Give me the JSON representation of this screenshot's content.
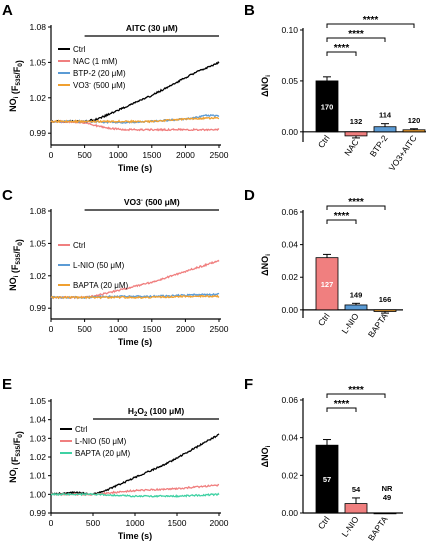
{
  "colors": {
    "ctrl": "#000000",
    "nac": "#f07f7f",
    "btp2": "#5b9bd5",
    "vo3": "#f0a030",
    "lnio": "#f07f7f",
    "bapta_orange": "#f0a030",
    "bapta_teal": "#3fd1a3"
  },
  "chart_data": [
    {
      "id": "A",
      "type": "line",
      "panel_label": "A",
      "annotation": "AITC (30 μM)",
      "annotation_range": [
        500,
        2500
      ],
      "xlabel": "Time (s)",
      "ylabel": "NOi (F535/F0)",
      "xlim": [
        0,
        2500
      ],
      "ylim": [
        0.98,
        1.08
      ],
      "xticks": [
        0,
        500,
        1000,
        1500,
        2000,
        2500
      ],
      "yticks": [
        "0.99",
        "1.02",
        "1.05",
        "1.08"
      ],
      "ytick_values": [
        0.99,
        1.02,
        1.05,
        1.08
      ],
      "legend": [
        "Ctrl",
        "NAC (1 mM)",
        "BTP-2 (20 μM)",
        "VO3- (500 μM)"
      ],
      "series": [
        {
          "name": "Ctrl",
          "color": "#000000",
          "x": [
            0,
            500,
            700,
            900,
            1100,
            1300,
            1500,
            1700,
            1900,
            2100,
            2300,
            2500
          ],
          "y": [
            1.0,
            1.0,
            1.002,
            1.007,
            1.012,
            1.017,
            1.022,
            1.028,
            1.034,
            1.04,
            1.045,
            1.05
          ]
        },
        {
          "name": "NAC (1 mM)",
          "color": "#f07f7f",
          "x": [
            0,
            500,
            700,
            900,
            1100,
            1500,
            2000,
            2500
          ],
          "y": [
            1.0,
            0.999,
            0.996,
            0.994,
            0.993,
            0.993,
            0.993,
            0.993
          ]
        },
        {
          "name": "BTP-2 (20 μM)",
          "color": "#5b9bd5",
          "x": [
            0,
            500,
            1000,
            1500,
            2000,
            2300,
            2500
          ],
          "y": [
            1.0,
            1.0,
            0.999,
            1.0,
            1.002,
            1.005,
            1.005
          ]
        },
        {
          "name": "VO3- (500 μM)",
          "color": "#f0a030",
          "x": [
            0,
            500,
            1000,
            1500,
            2000,
            2500
          ],
          "y": [
            1.0,
            1.0,
            1.0,
            1.0,
            1.002,
            1.003
          ]
        }
      ]
    },
    {
      "id": "B",
      "type": "bar",
      "panel_label": "B",
      "ylabel": "ΔNOi",
      "ylim": [
        -0.01,
        0.1
      ],
      "yticks": [
        "0.00",
        "0.05",
        "0.10"
      ],
      "ytick_values": [
        0.0,
        0.05,
        0.1
      ],
      "categories": [
        "Ctrl",
        "NAC",
        "BTP-2",
        "VO3+AITC"
      ],
      "values": [
        0.05,
        -0.004,
        0.005,
        0.002
      ],
      "errors": [
        0.004,
        0.002,
        0.003,
        0.001
      ],
      "n_labels": [
        "170",
        "132",
        "114",
        "120"
      ],
      "colors": [
        "#000000",
        "#f07f7f",
        "#5b9bd5",
        "#f0a030"
      ],
      "significance": [
        {
          "from": 0,
          "to": 3,
          "label": "****"
        },
        {
          "from": 0,
          "to": 2,
          "label": "****"
        },
        {
          "from": 0,
          "to": 1,
          "label": "****"
        }
      ]
    },
    {
      "id": "C",
      "type": "line",
      "panel_label": "C",
      "annotation": "VO3- (500 μM)",
      "annotation_range": [
        500,
        2500
      ],
      "xlabel": "Time (s)",
      "ylabel": "NOi (F535/F0)",
      "xlim": [
        0,
        2500
      ],
      "ylim": [
        0.98,
        1.08
      ],
      "xticks": [
        0,
        500,
        1000,
        1500,
        2000,
        2500
      ],
      "yticks": [
        "0.99",
        "1.02",
        "1.05",
        "1.08"
      ],
      "ytick_values": [
        0.99,
        1.02,
        1.05,
        1.08
      ],
      "legend": [
        "Ctrl",
        "L-NIO (50 μM)",
        "BAPTA (20 μM)"
      ],
      "series": [
        {
          "name": "Ctrl",
          "color": "#f07f7f",
          "x": [
            0,
            500,
            700,
            900,
            1100,
            1300,
            1500,
            1700,
            1900,
            2100,
            2300,
            2500
          ],
          "y": [
            1.0,
            1.0,
            1.002,
            1.005,
            1.008,
            1.011,
            1.014,
            1.018,
            1.022,
            1.026,
            1.03,
            1.034
          ]
        },
        {
          "name": "L-NIO (50 μM)",
          "color": "#5b9bd5",
          "x": [
            0,
            500,
            1000,
            1500,
            2000,
            2500
          ],
          "y": [
            1.0,
            1.0,
            1.001,
            1.001,
            1.002,
            1.003
          ]
        },
        {
          "name": "BAPTA (20 μM)",
          "color": "#f0a030",
          "x": [
            0,
            500,
            1000,
            1500,
            2000,
            2500
          ],
          "y": [
            1.0,
            1.0,
            1.0,
            1.0,
            1.001,
            1.001
          ]
        }
      ]
    },
    {
      "id": "D",
      "type": "bar",
      "panel_label": "D",
      "ylabel": "ΔNOi",
      "ylim": [
        -0.005,
        0.06
      ],
      "yticks": [
        "0.00",
        "0.02",
        "0.04",
        "0.06"
      ],
      "ytick_values": [
        0.0,
        0.02,
        0.04,
        0.06
      ],
      "categories": [
        "Ctrl",
        "L-NIO",
        "BAPTA"
      ],
      "values": [
        0.032,
        0.003,
        -0.001
      ],
      "errors": [
        0.002,
        0.001,
        0.001
      ],
      "n_labels": [
        "127",
        "149",
        "166"
      ],
      "colors": [
        "#f07f7f",
        "#5b9bd5",
        "#f0a030"
      ],
      "significance": [
        {
          "from": 0,
          "to": 2,
          "label": "****"
        },
        {
          "from": 0,
          "to": 1,
          "label": "****"
        }
      ]
    },
    {
      "id": "E",
      "type": "line",
      "panel_label": "E",
      "annotation": "H2O2 (100 μM)",
      "annotation_range": [
        500,
        2000
      ],
      "xlabel": "Time (s)",
      "ylabel": "NOi (F535/F0)",
      "xlim": [
        0,
        2000
      ],
      "ylim": [
        0.99,
        1.05
      ],
      "xticks": [
        0,
        500,
        1000,
        1500,
        2000
      ],
      "yticks": [
        "0.99",
        "1.00",
        "1.01",
        "1.02",
        "1.03",
        "1.04",
        "1.05"
      ],
      "ytick_values": [
        0.99,
        1.0,
        1.01,
        1.02,
        1.03,
        1.04,
        1.05
      ],
      "legend": [
        "Ctrl",
        "L-NIO (50 μM)",
        "BAPTA (20 μM)"
      ],
      "series": [
        {
          "name": "Ctrl",
          "color": "#000000",
          "x": [
            0,
            300,
            500,
            650,
            800,
            1000,
            1200,
            1400,
            1600,
            1800,
            2000
          ],
          "y": [
            1.0,
            1.001,
            1.0,
            1.002,
            1.005,
            1.009,
            1.013,
            1.017,
            1.022,
            1.027,
            1.032
          ]
        },
        {
          "name": "L-NIO (50 μM)",
          "color": "#f07f7f",
          "x": [
            0,
            500,
            1000,
            1500,
            2000
          ],
          "y": [
            1.0,
            1.0,
            1.002,
            1.003,
            1.005
          ]
        },
        {
          "name": "BAPTA (20 μM)",
          "color": "#3fd1a3",
          "x": [
            0,
            500,
            1000,
            1500,
            2000
          ],
          "y": [
            1.0,
            1.0,
            0.999,
            0.999,
            1.0
          ]
        }
      ]
    },
    {
      "id": "F",
      "type": "bar",
      "panel_label": "F",
      "ylabel": "ΔNOi",
      "ylim": [
        0.0,
        0.06
      ],
      "yticks": [
        "0.00",
        "0.02",
        "0.04",
        "0.06"
      ],
      "ytick_values": [
        0.0,
        0.02,
        0.04,
        0.06
      ],
      "categories": [
        "Ctrl",
        "L-NIO",
        "BAPTA"
      ],
      "values": [
        0.036,
        0.005,
        0.0
      ],
      "errors": [
        0.003,
        0.003,
        0.0
      ],
      "n_labels": [
        "57",
        "54",
        "NR 49"
      ],
      "colors": [
        "#000000",
        "#f07f7f",
        "#3fd1a3"
      ],
      "significance": [
        {
          "from": 0,
          "to": 2,
          "label": "****"
        },
        {
          "from": 0,
          "to": 1,
          "label": "****"
        }
      ]
    }
  ]
}
